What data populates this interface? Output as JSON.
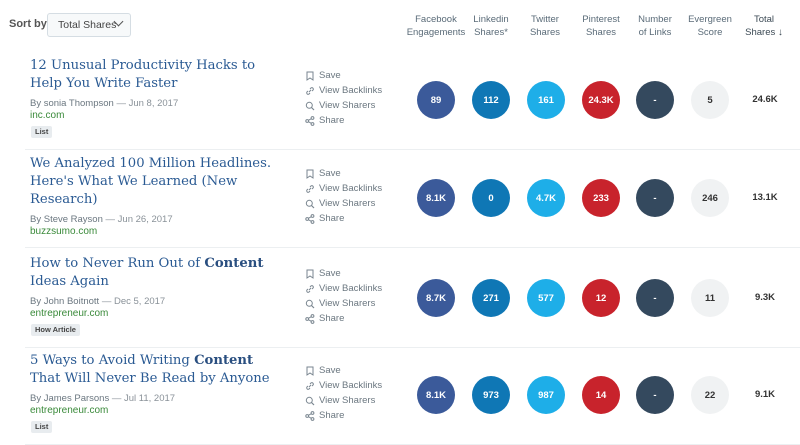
{
  "sort": {
    "label": "Sort by",
    "selected": "Total Shares"
  },
  "columns": {
    "facebook": "Facebook Engagements",
    "linkedin": "Linkedin Shares*",
    "twitter": "Twitter Shares",
    "pinterest": "Pinterest Shares",
    "links": "Number of Links",
    "evergreen": "Evergreen Score",
    "total": "Total Shares",
    "total_arrow": "↓"
  },
  "actions": {
    "save": "Save",
    "backlinks": "View Backlinks",
    "sharers": "View Sharers",
    "share": "Share"
  },
  "byline_prefix": "By",
  "colors": {
    "facebook": "#3b5a9a",
    "linkedin": "#0f77b5",
    "twitter": "#1eaee8",
    "pinterest": "#c8232c",
    "links": "#34495e",
    "evergreen": "#f0f2f3",
    "title": "#2a5a93",
    "domain": "#3a8a3a"
  },
  "articles": [
    {
      "title_parts": [
        {
          "t": "12 Unusual Productivity Hacks to Help You Write Faster",
          "b": false
        }
      ],
      "author": "sonia Thompson",
      "date": "— Jun 8, 2017",
      "domain": "inc.com",
      "tag": "List",
      "facebook": "89",
      "linkedin": "112",
      "twitter": "161",
      "pinterest": "24.3K",
      "links": "-",
      "evergreen": "5",
      "total": "24.6K"
    },
    {
      "title_parts": [
        {
          "t": "We Analyzed 100 Million Headlines. Here's What We Learned (New Research)",
          "b": false
        }
      ],
      "author": "Steve Rayson",
      "date": "— Jun 26, 2017",
      "domain": "buzzsumo.com",
      "tag": "",
      "facebook": "8.1K",
      "linkedin": "0",
      "twitter": "4.7K",
      "pinterest": "233",
      "links": "-",
      "evergreen": "246",
      "total": "13.1K"
    },
    {
      "title_parts": [
        {
          "t": "How to Never Run Out of ",
          "b": false
        },
        {
          "t": "Content",
          "b": true
        },
        {
          "t": " Ideas Again",
          "b": false
        }
      ],
      "author": "John Boitnott",
      "date": "— Dec 5, 2017",
      "domain": "entrepreneur.com",
      "tag": "How Article",
      "facebook": "8.7K",
      "linkedin": "271",
      "twitter": "577",
      "pinterest": "12",
      "links": "-",
      "evergreen": "11",
      "total": "9.3K"
    },
    {
      "title_parts": [
        {
          "t": "5 Ways to Avoid Writing ",
          "b": false
        },
        {
          "t": "Content",
          "b": true
        },
        {
          "t": " That Will Never Be Read by Anyone",
          "b": false
        }
      ],
      "author": "James Parsons",
      "date": "— Jul 11, 2017",
      "domain": "entrepreneur.com",
      "tag": "List",
      "facebook": "8.1K",
      "linkedin": "973",
      "twitter": "987",
      "pinterest": "14",
      "links": "-",
      "evergreen": "22",
      "total": "9.1K"
    }
  ]
}
